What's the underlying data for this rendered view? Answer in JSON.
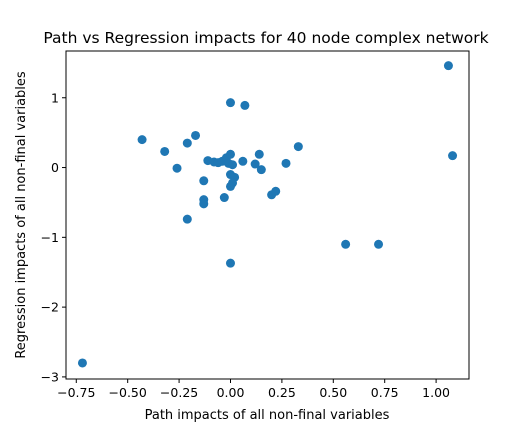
{
  "chart_data": {
    "type": "scatter",
    "title": "Path vs Regression impacts for 40 node complex network",
    "xlabel": "Path impacts of all non-final variables",
    "ylabel": "Regression impacts of all non-final variables",
    "xlim": [
      -0.8,
      1.16
    ],
    "ylim": [
      -3.03,
      1.67
    ],
    "xticks": [
      -0.75,
      -0.5,
      -0.25,
      0.0,
      0.25,
      0.5,
      0.75,
      1.0
    ],
    "xtick_labels": [
      "−0.75",
      "−0.50",
      "−0.25",
      "0.00",
      "0.25",
      "0.50",
      "0.75",
      "1.00"
    ],
    "yticks": [
      -3,
      -2,
      -1,
      0,
      1
    ],
    "ytick_labels": [
      "−3",
      "−2",
      "−1",
      "0",
      "1"
    ],
    "grid": false,
    "marker_color": "#1f77b4",
    "points": [
      {
        "x": 1.06,
        "y": 1.46
      },
      {
        "x": 1.08,
        "y": 0.17
      },
      {
        "x": 0.0,
        "y": 0.93
      },
      {
        "x": 0.07,
        "y": 0.89
      },
      {
        "x": -0.43,
        "y": 0.4
      },
      {
        "x": -0.32,
        "y": 0.23
      },
      {
        "x": -0.21,
        "y": 0.35
      },
      {
        "x": -0.17,
        "y": 0.46
      },
      {
        "x": -0.26,
        "y": -0.01
      },
      {
        "x": -0.13,
        "y": -0.19
      },
      {
        "x": -0.11,
        "y": 0.1
      },
      {
        "x": -0.08,
        "y": 0.08
      },
      {
        "x": -0.06,
        "y": 0.07
      },
      {
        "x": -0.04,
        "y": 0.09
      },
      {
        "x": -0.02,
        "y": 0.14
      },
      {
        "x": -0.01,
        "y": 0.06
      },
      {
        "x": 0.0,
        "y": 0.19
      },
      {
        "x": 0.01,
        "y": 0.04
      },
      {
        "x": 0.0,
        "y": -0.1
      },
      {
        "x": 0.02,
        "y": -0.14
      },
      {
        "x": 0.01,
        "y": -0.22
      },
      {
        "x": 0.0,
        "y": -0.27
      },
      {
        "x": 0.06,
        "y": 0.09
      },
      {
        "x": 0.12,
        "y": 0.05
      },
      {
        "x": 0.14,
        "y": 0.19
      },
      {
        "x": 0.15,
        "y": -0.03
      },
      {
        "x": 0.27,
        "y": 0.06
      },
      {
        "x": 0.33,
        "y": 0.3
      },
      {
        "x": -0.03,
        "y": -0.43
      },
      {
        "x": 0.2,
        "y": -0.39
      },
      {
        "x": 0.22,
        "y": -0.34
      },
      {
        "x": -0.13,
        "y": -0.46
      },
      {
        "x": -0.13,
        "y": -0.52
      },
      {
        "x": -0.21,
        "y": -0.74
      },
      {
        "x": 0.56,
        "y": -1.1
      },
      {
        "x": 0.72,
        "y": -1.1
      },
      {
        "x": 0.0,
        "y": -1.37
      },
      {
        "x": -0.72,
        "y": -2.8
      }
    ]
  }
}
